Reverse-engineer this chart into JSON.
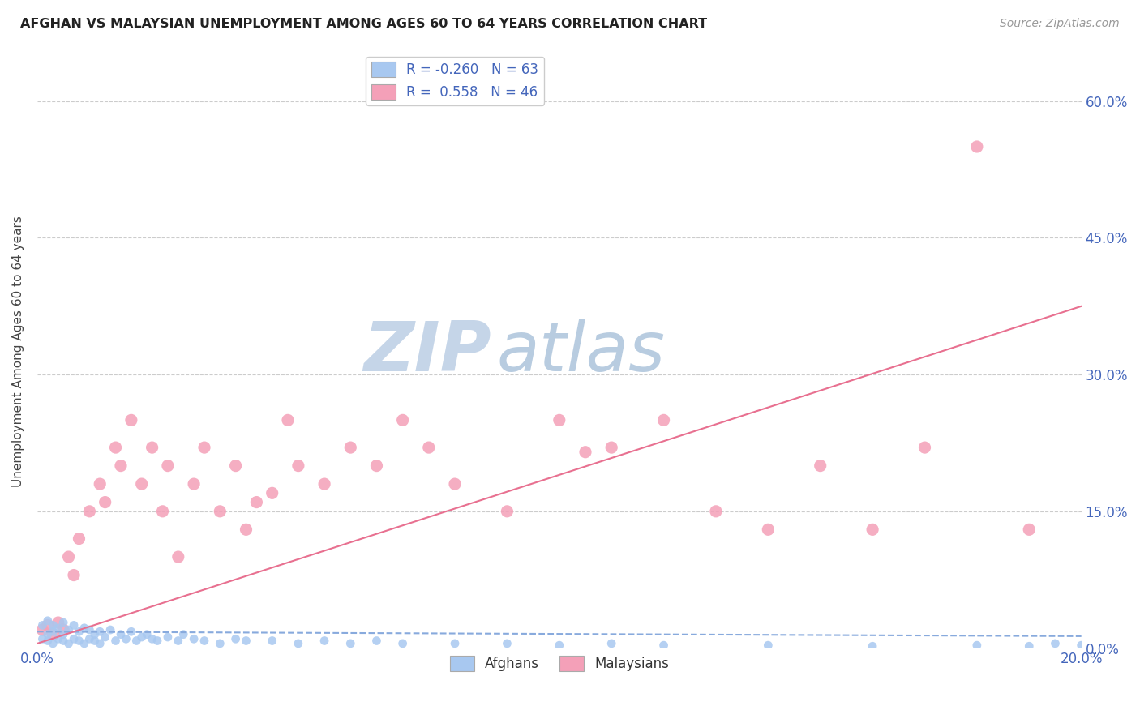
{
  "title": "AFGHAN VS MALAYSIAN UNEMPLOYMENT AMONG AGES 60 TO 64 YEARS CORRELATION CHART",
  "source": "Source: ZipAtlas.com",
  "ylabel": "Unemployment Among Ages 60 to 64 years",
  "xlim": [
    0.0,
    0.2
  ],
  "ylim": [
    0.0,
    0.65
  ],
  "yticks": [
    0.0,
    0.15,
    0.3,
    0.45,
    0.6
  ],
  "xticks": [
    0.0,
    0.05,
    0.1,
    0.15,
    0.2
  ],
  "afghan_color": "#a8c8f0",
  "afghan_line_color": "#88aadd",
  "malaysian_color": "#f4a0b8",
  "malaysian_line_color": "#e87090",
  "watermark_zip_color": "#c5d5e8",
  "watermark_atlas_color": "#b8cce0",
  "r_afghan": -0.26,
  "n_afghan": 63,
  "r_malaysian": 0.558,
  "n_malaysian": 46,
  "legend_label_1": "Afghans",
  "legend_label_2": "Malaysians",
  "background_color": "#ffffff",
  "grid_color": "#cccccc",
  "axis_color": "#4466bb",
  "af_slope": -0.025,
  "af_intercept": 0.018,
  "ml_slope": 1.85,
  "ml_intercept": 0.005,
  "afghan_points_x": [
    0.001,
    0.001,
    0.002,
    0.002,
    0.002,
    0.003,
    0.003,
    0.003,
    0.004,
    0.004,
    0.005,
    0.005,
    0.005,
    0.006,
    0.006,
    0.007,
    0.007,
    0.008,
    0.008,
    0.009,
    0.009,
    0.01,
    0.01,
    0.011,
    0.011,
    0.012,
    0.012,
    0.013,
    0.014,
    0.015,
    0.016,
    0.017,
    0.018,
    0.019,
    0.02,
    0.021,
    0.022,
    0.023,
    0.025,
    0.027,
    0.028,
    0.03,
    0.032,
    0.035,
    0.038,
    0.04,
    0.045,
    0.05,
    0.055,
    0.06,
    0.065,
    0.07,
    0.08,
    0.09,
    0.1,
    0.11,
    0.12,
    0.14,
    0.16,
    0.18,
    0.19,
    0.195,
    0.2
  ],
  "afghan_points_y": [
    0.01,
    0.025,
    0.008,
    0.015,
    0.03,
    0.005,
    0.018,
    0.025,
    0.01,
    0.022,
    0.008,
    0.015,
    0.028,
    0.005,
    0.02,
    0.01,
    0.025,
    0.008,
    0.018,
    0.005,
    0.022,
    0.01,
    0.02,
    0.008,
    0.015,
    0.005,
    0.018,
    0.012,
    0.02,
    0.008,
    0.015,
    0.01,
    0.018,
    0.008,
    0.012,
    0.015,
    0.01,
    0.008,
    0.012,
    0.008,
    0.015,
    0.01,
    0.008,
    0.005,
    0.01,
    0.008,
    0.008,
    0.005,
    0.008,
    0.005,
    0.008,
    0.005,
    0.005,
    0.005,
    0.003,
    0.005,
    0.003,
    0.003,
    0.002,
    0.003,
    0.002,
    0.005,
    0.003
  ],
  "malaysian_points_x": [
    0.001,
    0.002,
    0.003,
    0.004,
    0.005,
    0.006,
    0.007,
    0.008,
    0.01,
    0.012,
    0.013,
    0.015,
    0.016,
    0.018,
    0.02,
    0.022,
    0.024,
    0.025,
    0.027,
    0.03,
    0.032,
    0.035,
    0.038,
    0.04,
    0.042,
    0.045,
    0.048,
    0.05,
    0.055,
    0.06,
    0.065,
    0.07,
    0.075,
    0.08,
    0.09,
    0.1,
    0.105,
    0.11,
    0.12,
    0.13,
    0.14,
    0.15,
    0.16,
    0.17,
    0.18,
    0.19
  ],
  "malaysian_points_y": [
    0.02,
    0.025,
    0.015,
    0.028,
    0.02,
    0.1,
    0.08,
    0.12,
    0.15,
    0.18,
    0.16,
    0.22,
    0.2,
    0.25,
    0.18,
    0.22,
    0.15,
    0.2,
    0.1,
    0.18,
    0.22,
    0.15,
    0.2,
    0.13,
    0.16,
    0.17,
    0.25,
    0.2,
    0.18,
    0.22,
    0.2,
    0.25,
    0.22,
    0.18,
    0.15,
    0.25,
    0.215,
    0.22,
    0.25,
    0.15,
    0.13,
    0.2,
    0.13,
    0.22,
    0.55,
    0.13
  ]
}
